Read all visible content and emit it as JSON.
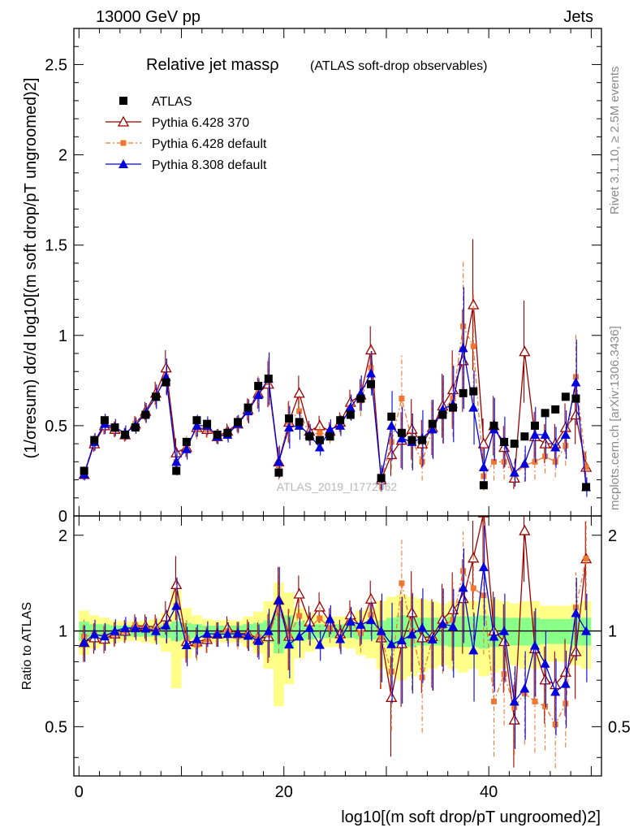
{
  "header": {
    "left": "13000 GeV pp",
    "right": "Jets"
  },
  "side_labels": {
    "rivet": "Rivet 3.1.10, ≥ 2.5M events",
    "mcplots": "mcplots.cern.ch [arXiv:1306.3436]"
  },
  "watermark": "ATLAS_2019_I1772062",
  "chart_data": {
    "type": "scatter",
    "title": "Relative jet massρ",
    "subtitle": "(ATLAS soft-drop observables)",
    "ylabel": "(1/σresum) dσ/d log10[(m soft drop/pT ungroomed)2]",
    "xlabel": "log10[(m soft drop/pT ungroomed)2]",
    "ratio_ylabel": "Ratio to ATLAS",
    "xlim": [
      -0.5,
      51
    ],
    "ylim": [
      0,
      2.7
    ],
    "ratio_ylim": [
      0.35,
      2.3
    ],
    "ratio_log": true,
    "grid": false,
    "legend_position": "top-left",
    "x_ticks": [
      "0",
      "20",
      "40"
    ],
    "y_ticks": [
      "0",
      "0.5",
      "1",
      "1.5",
      "2",
      "2.5"
    ],
    "ratio_ticks": [
      "0.5",
      "1",
      "2"
    ],
    "x": [
      0.5,
      1.5,
      2.5,
      3.5,
      4.5,
      5.5,
      6.5,
      7.5,
      8.5,
      9.5,
      10.5,
      11.5,
      12.5,
      13.5,
      14.5,
      15.5,
      16.5,
      17.5,
      18.5,
      19.5,
      20.5,
      21.5,
      22.5,
      23.5,
      24.5,
      25.5,
      26.5,
      27.5,
      28.5,
      29.5,
      30.5,
      31.5,
      32.5,
      33.5,
      34.5,
      35.5,
      36.5,
      37.5,
      38.5,
      39.5,
      40.5,
      41.5,
      42.5,
      43.5,
      44.5,
      45.5,
      46.5,
      47.5,
      48.5,
      49.5
    ],
    "band_green": [
      0.07,
      0.05,
      0.05,
      0.04,
      0.04,
      0.04,
      0.04,
      0.04,
      0.05,
      0.07,
      0.06,
      0.05,
      0.04,
      0.04,
      0.04,
      0.04,
      0.05,
      0.06,
      0.08,
      0.15,
      0.12,
      0.07,
      0.06,
      0.05,
      0.05,
      0.05,
      0.05,
      0.06,
      0.06,
      0.08,
      0.1,
      0.12,
      0.11,
      0.1,
      0.1,
      0.1,
      0.11,
      0.11,
      0.11,
      0.12,
      0.11,
      0.1,
      0.1,
      0.1,
      0.1,
      0.09,
      0.09,
      0.09,
      0.1,
      0.1
    ],
    "band_yellow": [
      0.16,
      0.12,
      0.1,
      0.08,
      0.07,
      0.07,
      0.08,
      0.09,
      0.14,
      0.34,
      0.18,
      0.12,
      0.09,
      0.08,
      0.08,
      0.08,
      0.11,
      0.15,
      0.24,
      0.42,
      0.32,
      0.18,
      0.14,
      0.12,
      0.11,
      0.11,
      0.12,
      0.16,
      0.18,
      0.24,
      0.28,
      0.3,
      0.28,
      0.26,
      0.24,
      0.22,
      0.24,
      0.26,
      0.24,
      0.28,
      0.26,
      0.24,
      0.22,
      0.24,
      0.24,
      0.2,
      0.2,
      0.2,
      0.22,
      0.24
    ],
    "series": [
      {
        "name": "ATLAS",
        "color": "#000000",
        "marker": "square",
        "values": [
          0.25,
          0.42,
          0.53,
          0.49,
          0.45,
          0.49,
          0.56,
          0.66,
          0.74,
          0.25,
          0.41,
          0.53,
          0.51,
          0.45,
          0.46,
          0.52,
          0.6,
          0.72,
          0.76,
          0.24,
          0.54,
          0.52,
          0.44,
          0.42,
          0.44,
          0.53,
          0.56,
          0.65,
          0.73,
          0.21,
          0.55,
          0.46,
          0.42,
          0.42,
          0.51,
          0.56,
          0.6,
          0.68,
          0.69,
          0.17,
          0.5,
          0.41,
          0.4,
          0.44,
          0.5,
          0.57,
          0.59,
          0.66,
          0.65,
          0.16
        ]
      },
      {
        "name": "Pythia 6.428 370",
        "color": "#990000",
        "marker": "open-triangle",
        "values": [
          0.23,
          0.4,
          0.5,
          0.48,
          0.45,
          0.51,
          0.58,
          0.68,
          0.82,
          0.35,
          0.38,
          0.49,
          0.48,
          0.44,
          0.47,
          0.51,
          0.59,
          0.68,
          0.73,
          0.3,
          0.52,
          0.68,
          0.47,
          0.5,
          0.47,
          0.52,
          0.63,
          0.67,
          0.92,
          0.2,
          0.34,
          0.42,
          0.48,
          0.4,
          0.49,
          0.61,
          0.7,
          0.86,
          1.17,
          0.4,
          0.5,
          0.38,
          0.21,
          0.91,
          0.44,
          0.4,
          0.4,
          0.49,
          0.56,
          0.27
        ]
      },
      {
        "name": "Pythia 6.428 default",
        "color": "#ee7733",
        "marker": "filled-square",
        "dashed": true,
        "values": [
          0.24,
          0.41,
          0.51,
          0.48,
          0.45,
          0.51,
          0.57,
          0.67,
          0.77,
          0.3,
          0.39,
          0.48,
          0.48,
          0.44,
          0.46,
          0.5,
          0.58,
          0.69,
          0.74,
          0.28,
          0.52,
          0.58,
          0.45,
          0.46,
          0.45,
          0.51,
          0.6,
          0.64,
          0.82,
          0.2,
          0.41,
          0.65,
          0.42,
          0.3,
          0.48,
          0.58,
          0.65,
          1.05,
          0.94,
          0.22,
          0.3,
          0.3,
          0.23,
          0.28,
          0.3,
          0.33,
          0.3,
          0.39,
          0.77,
          0.27
        ]
      },
      {
        "name": "Pythia 8.308 default",
        "color": "#0000dd",
        "marker": "filled-triangle",
        "values": [
          0.23,
          0.41,
          0.51,
          0.49,
          0.46,
          0.5,
          0.57,
          0.66,
          0.77,
          0.3,
          0.37,
          0.5,
          0.5,
          0.44,
          0.45,
          0.51,
          0.58,
          0.67,
          0.76,
          0.3,
          0.49,
          0.5,
          0.45,
          0.38,
          0.48,
          0.5,
          0.6,
          0.68,
          0.79,
          0.21,
          0.5,
          0.43,
          0.41,
          0.43,
          0.48,
          0.59,
          0.62,
          0.93,
          0.6,
          0.27,
          0.48,
          0.41,
          0.24,
          0.29,
          0.45,
          0.45,
          0.38,
          0.45,
          0.74,
          0.16
        ]
      }
    ]
  }
}
